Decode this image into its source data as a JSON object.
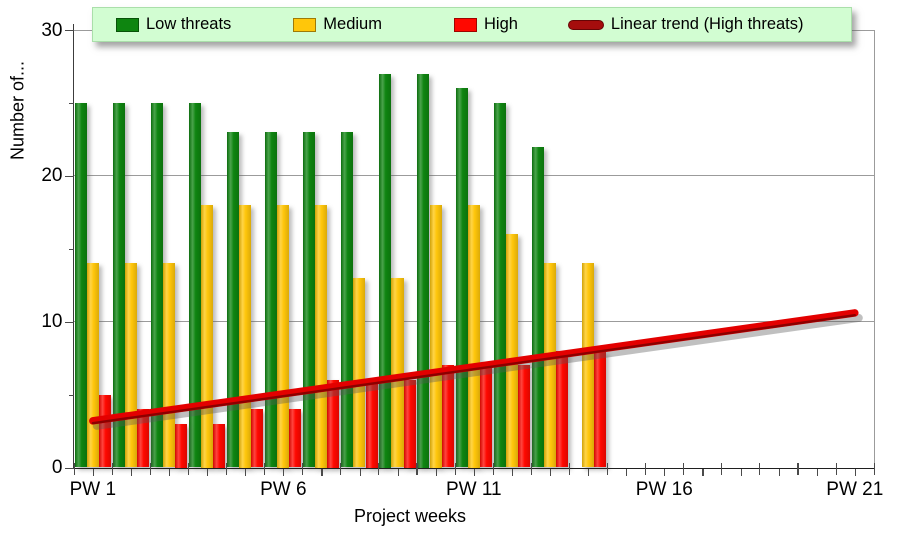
{
  "legend": {
    "background": "#D2FDD2",
    "items": [
      {
        "label": "Low threats",
        "color": "#0E8510",
        "marker": "square"
      },
      {
        "label": "Medium",
        "color": "#FFC60A",
        "marker": "square"
      },
      {
        "label": "High",
        "color": "#FF0800",
        "marker": "square"
      },
      {
        "label": "Linear trend (High threats)",
        "color": "#A50D0D",
        "marker": "line"
      }
    ]
  },
  "axes": {
    "y": {
      "title": "Number of...",
      "major_ticks": [
        0,
        10,
        20,
        30
      ],
      "minor_ticks": [
        5,
        15,
        25
      ],
      "range": [
        0,
        30
      ]
    },
    "x": {
      "title": "Project weeks",
      "labeled_weeks": [
        1,
        6,
        11,
        16,
        21
      ],
      "tick_labels": [
        "PW 1",
        "PW 6",
        "PW 11",
        "PW 16",
        "PW 21"
      ],
      "total_weeks": 21
    }
  },
  "chart_data": {
    "type": "bar",
    "xlabel": "Project weeks",
    "ylabel": "Number of...",
    "ylim": [
      0,
      30
    ],
    "grid": true,
    "legend_position": "top",
    "weeks": [
      1,
      2,
      3,
      4,
      5,
      6,
      7,
      8,
      9,
      10,
      11,
      12,
      13,
      14
    ],
    "series": [
      {
        "name": "Low threats",
        "color": "#0E8510",
        "values": [
          25,
          25,
          25,
          25,
          23,
          23,
          23,
          23,
          27,
          27,
          26,
          25,
          22,
          null
        ]
      },
      {
        "name": "Medium",
        "color": "#FFC60A",
        "values": [
          14,
          14,
          14,
          18,
          18,
          18,
          18,
          13,
          13,
          18,
          18,
          16,
          14,
          14
        ]
      },
      {
        "name": "High",
        "color": "#FF0800",
        "values": [
          5,
          4,
          3,
          3,
          4,
          4,
          6,
          6,
          6,
          7,
          7,
          7,
          8,
          8
        ]
      }
    ],
    "trend": {
      "name": "Linear trend (High threats)",
      "color": "#A50D0D",
      "start_week": 1,
      "end_week": 21,
      "start_value": 3.2,
      "end_value": 10.6
    }
  }
}
